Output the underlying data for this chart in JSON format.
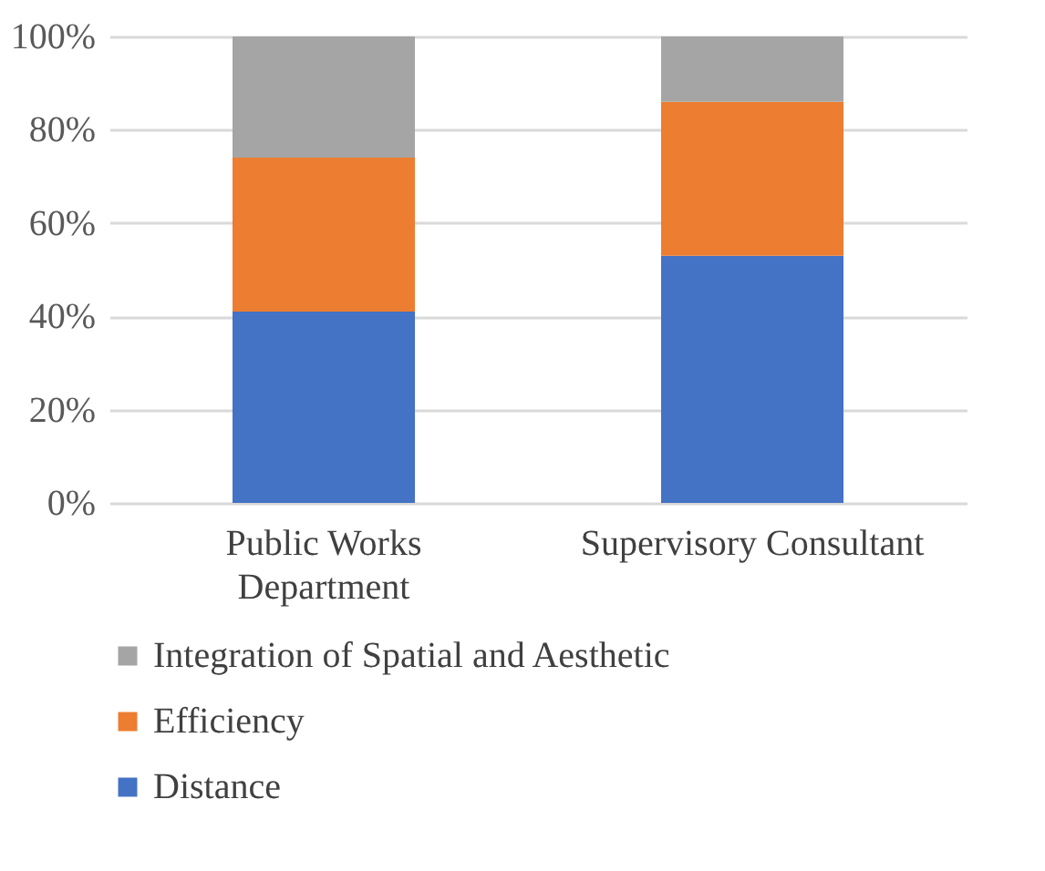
{
  "chart_data": {
    "type": "bar",
    "stacked": true,
    "categories": [
      "Public Works Department",
      "Supervisory Consultant"
    ],
    "series": [
      {
        "name": "Distance",
        "color": "#4472c4",
        "values": [
          41,
          53
        ]
      },
      {
        "name": "Efficiency",
        "color": "#ed7d31",
        "values": [
          33,
          33
        ]
      },
      {
        "name": "Integration of Spatial and Aesthetic",
        "color": "#a5a5a5",
        "values": [
          26,
          14
        ]
      }
    ],
    "ylim": [
      0,
      100
    ],
    "yticks": [
      {
        "value": 0,
        "label": "0%"
      },
      {
        "value": 20,
        "label": "20%"
      },
      {
        "value": 40,
        "label": "40%"
      },
      {
        "value": 60,
        "label": "60%"
      },
      {
        "value": 80,
        "label": "80%"
      },
      {
        "value": 100,
        "label": "100%"
      }
    ],
    "grid": "y",
    "legend": "bottom"
  }
}
